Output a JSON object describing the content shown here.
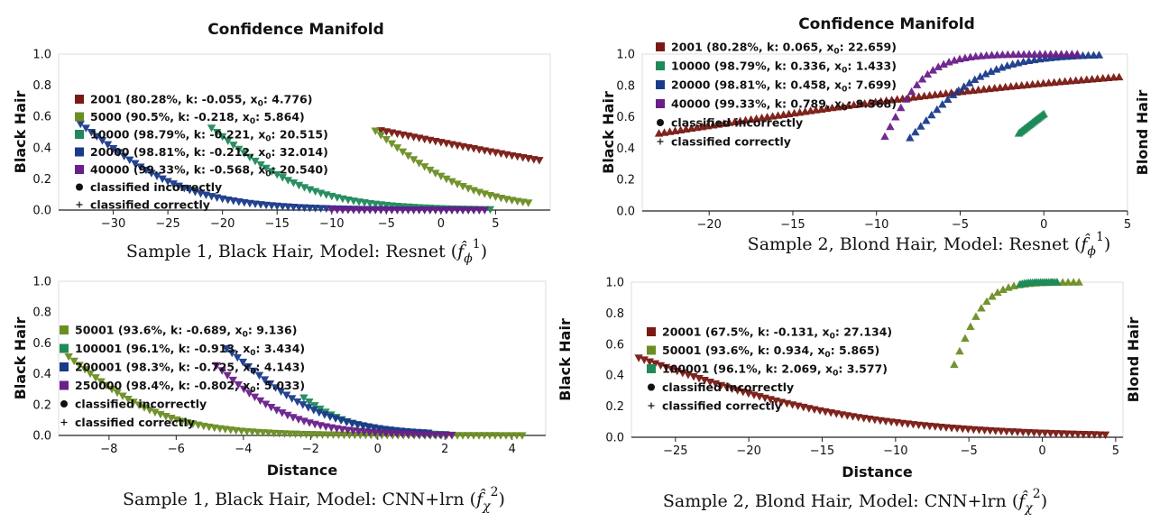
{
  "chart_data": [
    {
      "type": "scatter",
      "title": "Confidence Manifold",
      "caption_prefix": "Sample 1, Black Hair, Model: Resnet (",
      "caption_sym": "f̂",
      "caption_sub": "ϕ",
      "caption_sup": "1",
      "caption_suffix": ")",
      "ylabel_left": "Black Hair",
      "ylabel_right": "",
      "xlabel": "",
      "xlim": [
        -35,
        10
      ],
      "ylim": [
        0,
        1
      ],
      "xticks": [
        -30,
        -25,
        -20,
        -15,
        -10,
        -5,
        0,
        5
      ],
      "xtick_labels": [
        "−30",
        "−25",
        "−20",
        "−15",
        "−10",
        "−5",
        "0",
        "5"
      ],
      "yticks": [
        0,
        0.2,
        0.4,
        0.6,
        0.8,
        1.0
      ],
      "ytick_labels": [
        "0.0",
        "0.2",
        "0.4",
        "0.6",
        "0.8",
        "1.0"
      ],
      "series": [
        {
          "name": "2001 (80.28%, k: -0.055, x",
          "sub": "0",
          "tail": ": 4.776)",
          "color": "#7a1a14",
          "k": -0.055,
          "x0": 4.776,
          "range": [
            -5.5,
            9
          ]
        },
        {
          "name": "5000 (90.5%, k: -0.218, x",
          "sub": "0",
          "tail": ": 5.864)",
          "color": "#6b8e23",
          "k": -0.218,
          "x0": 5.864,
          "range": [
            -6,
            8
          ]
        },
        {
          "name": "10000 (98.79%, k: -0.221, x",
          "sub": "0",
          "tail": ": 20.515)",
          "color": "#1f8a5a",
          "k": -0.221,
          "x0": 20.515,
          "range": [
            -21,
            4.5
          ]
        },
        {
          "name": "20000 (98.81%, k: -0.212, x",
          "sub": "0",
          "tail": ": 32.014)",
          "color": "#1a3a8a",
          "k": -0.212,
          "x0": 32.014,
          "range": [
            -33,
            3.5
          ]
        },
        {
          "name": "40000 (99.33%, k: -0.568, x",
          "sub": "0",
          "tail": ": 20.540)",
          "color": "#6a1f8a",
          "k": -0.568,
          "x0": 20.54,
          "range": [
            -10,
            4
          ]
        }
      ],
      "legend_extra": [
        "classified incorrectly",
        "classified correctly"
      ]
    },
    {
      "type": "scatter",
      "title": "Confidence Manifold",
      "caption_prefix": "Sample 2, Blond Hair, Model: Resnet (",
      "caption_sym": "f̂",
      "caption_sub": "ϕ",
      "caption_sup": "1",
      "caption_suffix": ")",
      "ylabel_left": "Black Hair",
      "ylabel_right": "Blond Hair",
      "xlabel": "",
      "xlim": [
        -24,
        5
      ],
      "ylim": [
        0,
        1
      ],
      "xticks": [
        -20,
        -15,
        -10,
        -5,
        0,
        5
      ],
      "xtick_labels": [
        "−20",
        "−15",
        "−10",
        "−5",
        "0",
        "5"
      ],
      "yticks": [
        0,
        0.2,
        0.4,
        0.6,
        0.8,
        1.0
      ],
      "ytick_labels": [
        "0.0",
        "0.2",
        "0.4",
        "0.6",
        "0.8",
        "1.0"
      ],
      "series": [
        {
          "name": "2001 (80.28%, k: 0.065, x",
          "sub": "0",
          "tail": ": 22.659)",
          "color": "#7a1a14",
          "k": 0.065,
          "x0": 22.659,
          "range": [
            -23,
            4.5
          ]
        },
        {
          "name": "10000 (98.79%, k: 0.336, x",
          "sub": "0",
          "tail": ": 1.433)",
          "color": "#1f8a5a",
          "k": 0.336,
          "x0": 1.433,
          "range": [
            -1.5,
            0
          ]
        },
        {
          "name": "20000 (98.81%, k: 0.458, x",
          "sub": "0",
          "tail": ": 7.699)",
          "color": "#1a3a8a",
          "k": 0.458,
          "x0": 7.699,
          "range": [
            -8,
            3.3
          ]
        },
        {
          "name": "40000 (99.33%, k: 0.789, x",
          "sub": "0",
          "tail": ": 9.368)",
          "color": "#6a1f8a",
          "k": 0.789,
          "x0": 9.368,
          "range": [
            -9.5,
            2
          ]
        }
      ],
      "legend_extra": [
        "classified incorrectly",
        "classified correctly"
      ]
    },
    {
      "type": "scatter",
      "title": "",
      "caption_prefix": "Sample 1, Black Hair, Model: CNN+lrn (",
      "caption_sym": "f̂",
      "caption_sub": "χ",
      "caption_sup": "2",
      "caption_suffix": ")",
      "ylabel_left": "Black Hair",
      "ylabel_right": "",
      "xlabel": "Distance",
      "xlim": [
        -9.5,
        5
      ],
      "ylim": [
        0,
        1
      ],
      "xticks": [
        -8,
        -6,
        -4,
        -2,
        0,
        2,
        4
      ],
      "xtick_labels": [
        "−8",
        "−6",
        "−4",
        "−2",
        "0",
        "2",
        "4"
      ],
      "yticks": [
        0,
        0.2,
        0.4,
        0.6,
        0.8,
        1.0
      ],
      "ytick_labels": [
        "0.0",
        "0.2",
        "0.4",
        "0.6",
        "0.8",
        "1.0"
      ],
      "series": [
        {
          "name": "50001 (93.6%, k: -0.689, x",
          "sub": "0",
          "tail": ": 9.136)",
          "color": "#6b8e23",
          "k": -0.689,
          "x0": 9.136,
          "range": [
            -9.2,
            4.3
          ]
        },
        {
          "name": "100001 (96.1%, k: -0.913, x",
          "sub": "0",
          "tail": ": 3.434)",
          "color": "#1f8a5a",
          "k": -0.913,
          "x0": 3.434,
          "range": [
            -2.2,
            2
          ]
        },
        {
          "name": "200001 (98.3%, k: -0.725, x",
          "sub": "0",
          "tail": ": 4.143)",
          "color": "#1a3a8a",
          "k": -0.725,
          "x0": 4.143,
          "range": [
            -4.5,
            1.5
          ]
        },
        {
          "name": "250000 (98.4%, k: -0.802, x",
          "sub": "0",
          "tail": ": 5.033)",
          "color": "#6a1f8a",
          "k": -0.802,
          "x0": 5.033,
          "range": [
            -4.8,
            2.2
          ]
        }
      ],
      "legend_extra": [
        "classified incorrectly",
        "classified correctly"
      ]
    },
    {
      "type": "scatter",
      "title": "",
      "caption_prefix": "Sample 2, Blond Hair, Model: CNN+lrn (",
      "caption_sym": "f̂",
      "caption_sub": "χ",
      "caption_sup": "2",
      "caption_suffix": ")",
      "ylabel_left": "Black Hair",
      "ylabel_right": "Blond Hair",
      "xlabel": "Distance",
      "xlim": [
        -28,
        5.5
      ],
      "ylim": [
        0,
        1
      ],
      "xticks": [
        -25,
        -20,
        -15,
        -10,
        -5,
        0,
        5
      ],
      "xtick_labels": [
        "−25",
        "−20",
        "−15",
        "−10",
        "−5",
        "0",
        "5"
      ],
      "yticks": [
        0,
        0.2,
        0.4,
        0.6,
        0.8,
        1.0
      ],
      "ytick_labels": [
        "0.0",
        "0.2",
        "0.4",
        "0.6",
        "0.8",
        "1.0"
      ],
      "series": [
        {
          "name": "20001 (67.5%, k: -0.131, x",
          "sub": "0",
          "tail": ": 27.134)",
          "color": "#7a1a14",
          "k": -0.131,
          "x0": 27.134,
          "range": [
            -27.5,
            4.3
          ]
        },
        {
          "name": "50001 (93.6%, k: 0.934, x",
          "sub": "0",
          "tail": ": 5.865)",
          "color": "#6b8e23",
          "k": 0.934,
          "x0": 5.865,
          "range": [
            -6,
            2.5
          ]
        },
        {
          "name": "100001 (96.1%, k: 2.069, x",
          "sub": "0",
          "tail": ": 3.577)",
          "color": "#1f8a5a",
          "k": 2.069,
          "x0": 3.577,
          "range": [
            -1.5,
            1
          ]
        }
      ],
      "legend_extra": [
        "classified incorrectly",
        "classified correctly"
      ]
    }
  ]
}
